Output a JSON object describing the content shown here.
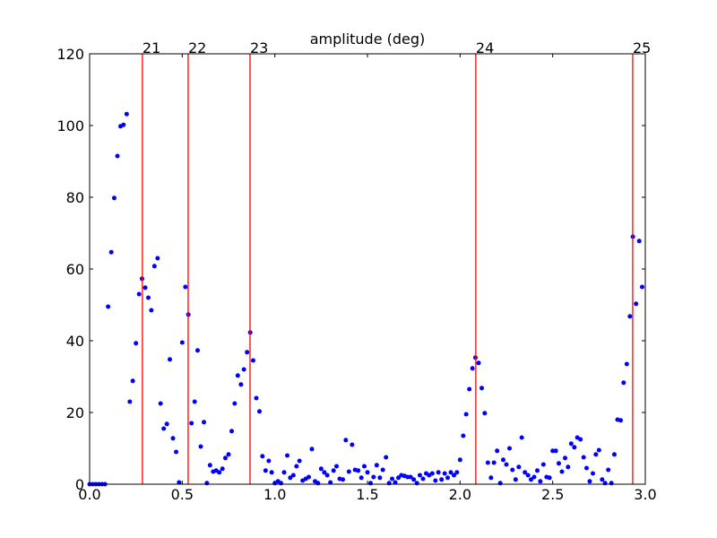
{
  "chart_data": {
    "type": "scatter",
    "title": "amplitude (deg)",
    "color": "#0000ff",
    "x": [
      0,
      0.017,
      0.033,
      0.05,
      0.067,
      0.083,
      0.1,
      0.117,
      0.133,
      0.15,
      0.167,
      0.183,
      0.2,
      0.217,
      0.233,
      0.25,
      0.267,
      0.283,
      0.3,
      0.317,
      0.333,
      0.35,
      0.367,
      0.383,
      0.4,
      0.417,
      0.433,
      0.45,
      0.467,
      0.483,
      0.5,
      0.517,
      0.533,
      0.55,
      0.567,
      0.583,
      0.6,
      0.617,
      0.633,
      0.65,
      0.667,
      0.683,
      0.7,
      0.717,
      0.733,
      0.75,
      0.767,
      0.783,
      0.8,
      0.817,
      0.833,
      0.85,
      0.867,
      0.883,
      0.9,
      0.917,
      0.933,
      0.95,
      0.967,
      0.983,
      1,
      1.017,
      1.033,
      1.05,
      1.067,
      1.083,
      1.1,
      1.117,
      1.133,
      1.15,
      1.167,
      1.183,
      1.2,
      1.217,
      1.233,
      1.25,
      1.267,
      1.283,
      1.3,
      1.317,
      1.333,
      1.35,
      1.367,
      1.383,
      1.4,
      1.417,
      1.433,
      1.45,
      1.467,
      1.483,
      1.5,
      1.517,
      1.533,
      1.55,
      1.567,
      1.583,
      1.6,
      1.617,
      1.633,
      1.65,
      1.667,
      1.683,
      1.7,
      1.717,
      1.733,
      1.75,
      1.767,
      1.783,
      1.8,
      1.817,
      1.833,
      1.85,
      1.867,
      1.883,
      1.9,
      1.917,
      1.933,
      1.95,
      1.967,
      1.983,
      2,
      2.017,
      2.033,
      2.05,
      2.067,
      2.083,
      2.1,
      2.117,
      2.133,
      2.15,
      2.167,
      2.183,
      2.2,
      2.217,
      2.233,
      2.25,
      2.267,
      2.283,
      2.3,
      2.317,
      2.333,
      2.35,
      2.367,
      2.383,
      2.4,
      2.417,
      2.433,
      2.45,
      2.467,
      2.483,
      2.5,
      2.517,
      2.533,
      2.55,
      2.567,
      2.583,
      2.6,
      2.617,
      2.633,
      2.65,
      2.667,
      2.683,
      2.7,
      2.717,
      2.733,
      2.75,
      2.767,
      2.783,
      2.8,
      2.817,
      2.833,
      2.85,
      2.867,
      2.883,
      2.9,
      2.917,
      2.933,
      2.95,
      2.967,
      2.983
    ],
    "values": [
      0,
      0,
      0,
      0,
      0,
      0,
      49.5,
      64.7,
      79.8,
      91.5,
      99.8,
      100.2,
      103.2,
      23,
      28.8,
      39.3,
      53,
      57.3,
      54.8,
      52,
      48.5,
      60.8,
      63,
      22.5,
      15.5,
      16.8,
      34.8,
      12.8,
      9,
      0.5,
      39.5,
      55,
      47.3,
      17,
      23,
      37.3,
      10.5,
      17.3,
      0.3,
      5.3,
      3.5,
      3.8,
      3.3,
      4.3,
      7.3,
      8.3,
      14.8,
      22.5,
      30.3,
      27.8,
      32,
      36.8,
      42.3,
      34.5,
      24,
      20.3,
      7.8,
      3.8,
      6.5,
      3.3,
      0.3,
      0.8,
      0.3,
      3.3,
      8,
      1.8,
      2.5,
      5,
      6.5,
      1,
      1.5,
      2,
      9.8,
      0.8,
      0.3,
      4.3,
      3.3,
      2.5,
      0.5,
      3.8,
      5,
      1.5,
      1.3,
      12.3,
      3.5,
      11,
      4,
      3.8,
      1.8,
      5,
      3.3,
      0.3,
      2,
      5.3,
      1.8,
      4,
      7.5,
      0.3,
      1.5,
      0.5,
      1.8,
      2.5,
      2.3,
      2,
      2,
      1.3,
      0.3,
      2.5,
      1.5,
      3,
      2.5,
      3,
      1,
      3.3,
      1.3,
      3,
      1.8,
      3.3,
      2.5,
      3.3,
      6.8,
      13.5,
      19.5,
      26.5,
      32.3,
      35.3,
      33.8,
      26.8,
      19.8,
      6,
      1.8,
      6,
      9.3,
      0.3,
      6.8,
      5.5,
      10,
      4,
      1.3,
      4.8,
      13,
      3.3,
      2.5,
      1.3,
      2,
      3.8,
      0.8,
      5.5,
      2,
      1.8,
      9.3,
      9.3,
      5.8,
      3.5,
      7.3,
      4.8,
      11.3,
      10.3,
      13,
      12.5,
      7.5,
      4.5,
      0.8,
      3,
      8.3,
      9.5,
      1.3,
      0.3,
      4,
      0.3,
      8.3,
      18,
      17.8,
      28.3,
      33.5,
      46.8,
      69,
      50.3,
      67.8,
      55
    ],
    "vlines": [
      {
        "x": 0.285,
        "label": "21"
      },
      {
        "x": 0.532,
        "label": "22"
      },
      {
        "x": 0.866,
        "label": "23"
      },
      {
        "x": 2.085,
        "label": "24"
      },
      {
        "x": 2.932,
        "label": "25"
      }
    ],
    "vline_color": "#ff0000",
    "xlim": [
      0,
      3
    ],
    "ylim": [
      0,
      120
    ],
    "xticks": [
      {
        "value": 0,
        "label": "0.0"
      },
      0.5,
      {
        "value": 1,
        "label": "1.0"
      },
      1.5,
      {
        "value": 2,
        "label": "2.0"
      },
      2.5,
      {
        "value": 3,
        "label": "3.0"
      }
    ],
    "yticks": [
      0,
      20,
      40,
      60,
      80,
      100,
      120
    ],
    "grid": false
  }
}
